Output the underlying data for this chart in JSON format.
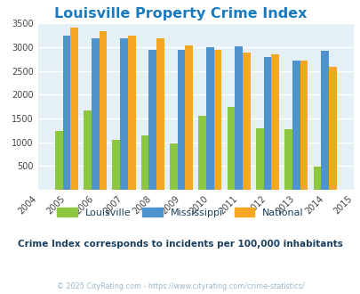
{
  "title": "Louisville Property Crime Index",
  "years": [
    2005,
    2006,
    2007,
    2008,
    2009,
    2010,
    2011,
    2012,
    2013,
    2014
  ],
  "louisville": [
    1230,
    1670,
    1040,
    1140,
    980,
    1560,
    1750,
    1290,
    1270,
    490
  ],
  "mississippi": [
    3240,
    3195,
    3180,
    2950,
    2950,
    2995,
    3020,
    2800,
    2720,
    2930
  ],
  "national": [
    3410,
    3335,
    3245,
    3195,
    3040,
    2945,
    2890,
    2855,
    2715,
    2580
  ],
  "louisville_color": "#8dc63f",
  "mississippi_color": "#4f93ce",
  "national_color": "#f5a623",
  "plot_bg": "#e4f0f6",
  "title_color": "#1a7abf",
  "subtitle": "Crime Index corresponds to incidents per 100,000 inhabitants",
  "subtitle_color": "#1a4060",
  "copyright": "© 2025 CityRating.com - https://www.cityrating.com/crime-statistics/",
  "copyright_color": "#9ab8cc",
  "xlim": [
    2004,
    2015
  ],
  "ylim": [
    0,
    3500
  ],
  "yticks": [
    0,
    500,
    1000,
    1500,
    2000,
    2500,
    3000,
    3500
  ],
  "bar_width": 0.27,
  "grid_color": "#ffffff",
  "legend_labels": [
    "Louisville",
    "Mississippi",
    "National"
  ]
}
